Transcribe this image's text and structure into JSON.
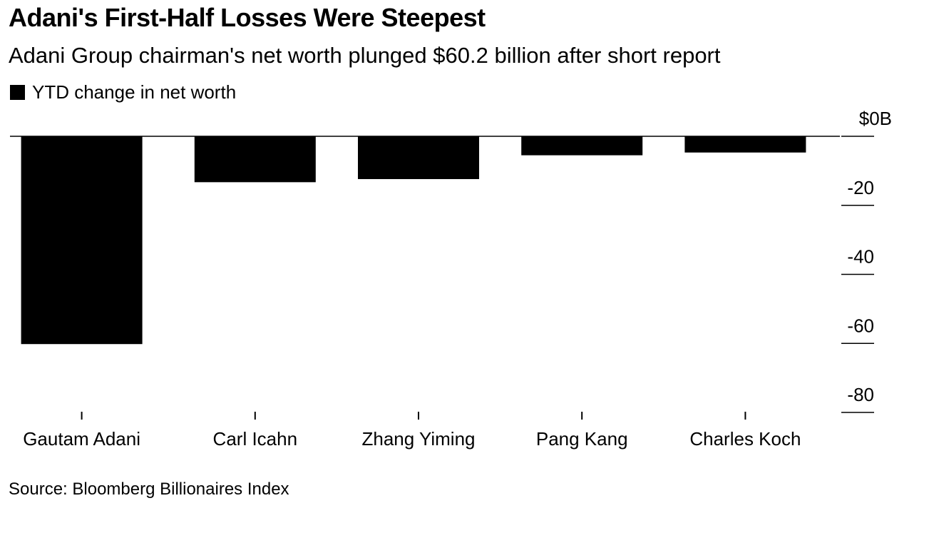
{
  "chart_data": {
    "type": "bar",
    "title": "Adani's First-Half Losses Were Steepest",
    "subtitle": "Adani Group chairman's net worth plunged $60.2 billion after short report",
    "legend": [
      {
        "label": "YTD change in net worth",
        "color": "#000000"
      }
    ],
    "categories": [
      "Gautam Adani",
      "Carl Icahn",
      "Zhang Yiming",
      "Pang Kang",
      "Charles Koch"
    ],
    "series": [
      {
        "name": "YTD change in net worth",
        "values": [
          -60.2,
          -13.3,
          -12.4,
          -5.5,
          -4.7
        ]
      }
    ],
    "ylim": [
      -80,
      0
    ],
    "yticks": [
      0,
      -20,
      -40,
      -60,
      -80
    ],
    "ytick_labels": [
      "$0B",
      "-20",
      "-40",
      "-60",
      "-80"
    ],
    "y_axis_position": "right",
    "bar_color": "#000000",
    "source": "Source: Bloomberg Billionaires Index"
  }
}
